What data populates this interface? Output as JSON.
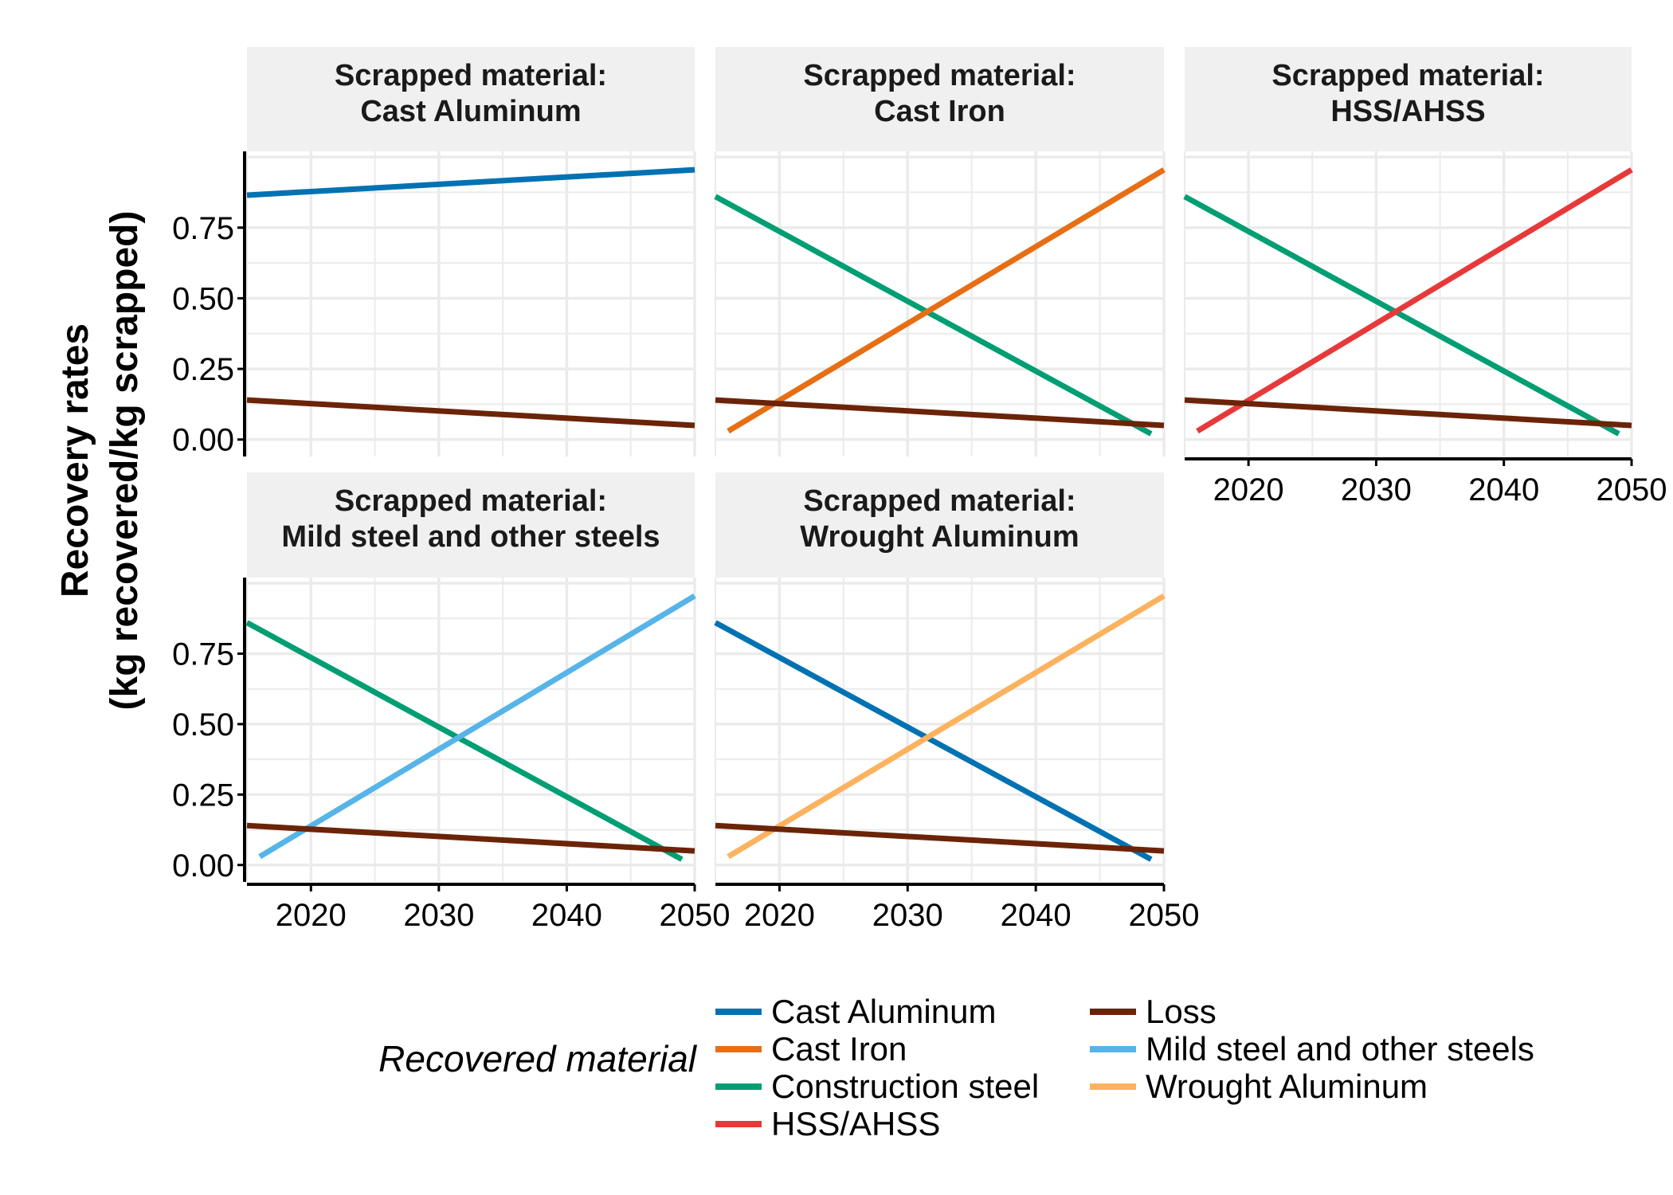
{
  "colors": {
    "Cast Aluminum": "#0072B2",
    "Cast Iron": "#E66F15",
    "Construction steel": "#009E73",
    "HSS/AHSS": "#E8393A",
    "Loss": "#6B2408",
    "Mild steel and other steels": "#56B4E9",
    "Wrought Aluminum": "#FCB25E"
  },
  "chart_data": {
    "type": "line",
    "ylabel_lines": [
      "Recovery rates",
      "(kg recovered/kg scrapped)"
    ],
    "xlim": [
      2015,
      2050
    ],
    "ylim": [
      0,
      1
    ],
    "x_ticks": [
      2020,
      2030,
      2040,
      2050
    ],
    "y_ticks": [
      0.0,
      0.25,
      0.5,
      0.75
    ],
    "y_tick_labels": [
      "0.00",
      "0.25",
      "0.50",
      "0.75"
    ],
    "grid": true,
    "legend": {
      "title": "Recovered material",
      "placement": "bottom",
      "entries": [
        "Cast Aluminum",
        "Cast Iron",
        "Construction steel",
        "HSS/AHSS",
        "Loss",
        "Mild steel and other steels",
        "Wrought Aluminum"
      ]
    },
    "panels": [
      {
        "strip": [
          "Scrapped material:",
          "Cast Aluminum"
        ],
        "series": [
          {
            "name": "Cast Aluminum",
            "x": [
              2015,
              2050
            ],
            "y": [
              0.865,
              0.955
            ]
          },
          {
            "name": "Loss",
            "x": [
              2015,
              2050
            ],
            "y": [
              0.14,
              0.05
            ]
          }
        ]
      },
      {
        "strip": [
          "Scrapped material:",
          "Cast Iron"
        ],
        "series": [
          {
            "name": "Construction steel",
            "x": [
              2015,
              2049
            ],
            "y": [
              0.86,
              0.02
            ]
          },
          {
            "name": "Cast Iron",
            "x": [
              2016,
              2050
            ],
            "y": [
              0.03,
              0.955
            ]
          },
          {
            "name": "Loss",
            "x": [
              2015,
              2050
            ],
            "y": [
              0.14,
              0.05
            ]
          }
        ]
      },
      {
        "strip": [
          "Scrapped material:",
          "HSS/AHSS"
        ],
        "series": [
          {
            "name": "Construction steel",
            "x": [
              2015,
              2049
            ],
            "y": [
              0.86,
              0.02
            ]
          },
          {
            "name": "HSS/AHSS",
            "x": [
              2016,
              2050
            ],
            "y": [
              0.03,
              0.955
            ]
          },
          {
            "name": "Loss",
            "x": [
              2015,
              2050
            ],
            "y": [
              0.14,
              0.05
            ]
          }
        ]
      },
      {
        "strip": [
          "Scrapped material:",
          "Mild steel and other steels"
        ],
        "series": [
          {
            "name": "Construction steel",
            "x": [
              2015,
              2049
            ],
            "y": [
              0.86,
              0.02
            ]
          },
          {
            "name": "Mild steel and other steels",
            "x": [
              2016,
              2050
            ],
            "y": [
              0.03,
              0.955
            ]
          },
          {
            "name": "Loss",
            "x": [
              2015,
              2050
            ],
            "y": [
              0.14,
              0.05
            ]
          }
        ]
      },
      {
        "strip": [
          "Scrapped material:",
          "Wrought Aluminum"
        ],
        "series": [
          {
            "name": "Cast Aluminum",
            "x": [
              2015,
              2049
            ],
            "y": [
              0.86,
              0.02
            ]
          },
          {
            "name": "Wrought Aluminum",
            "x": [
              2016,
              2050
            ],
            "y": [
              0.03,
              0.955
            ]
          },
          {
            "name": "Loss",
            "x": [
              2015,
              2050
            ],
            "y": [
              0.14,
              0.05
            ]
          }
        ]
      }
    ]
  }
}
